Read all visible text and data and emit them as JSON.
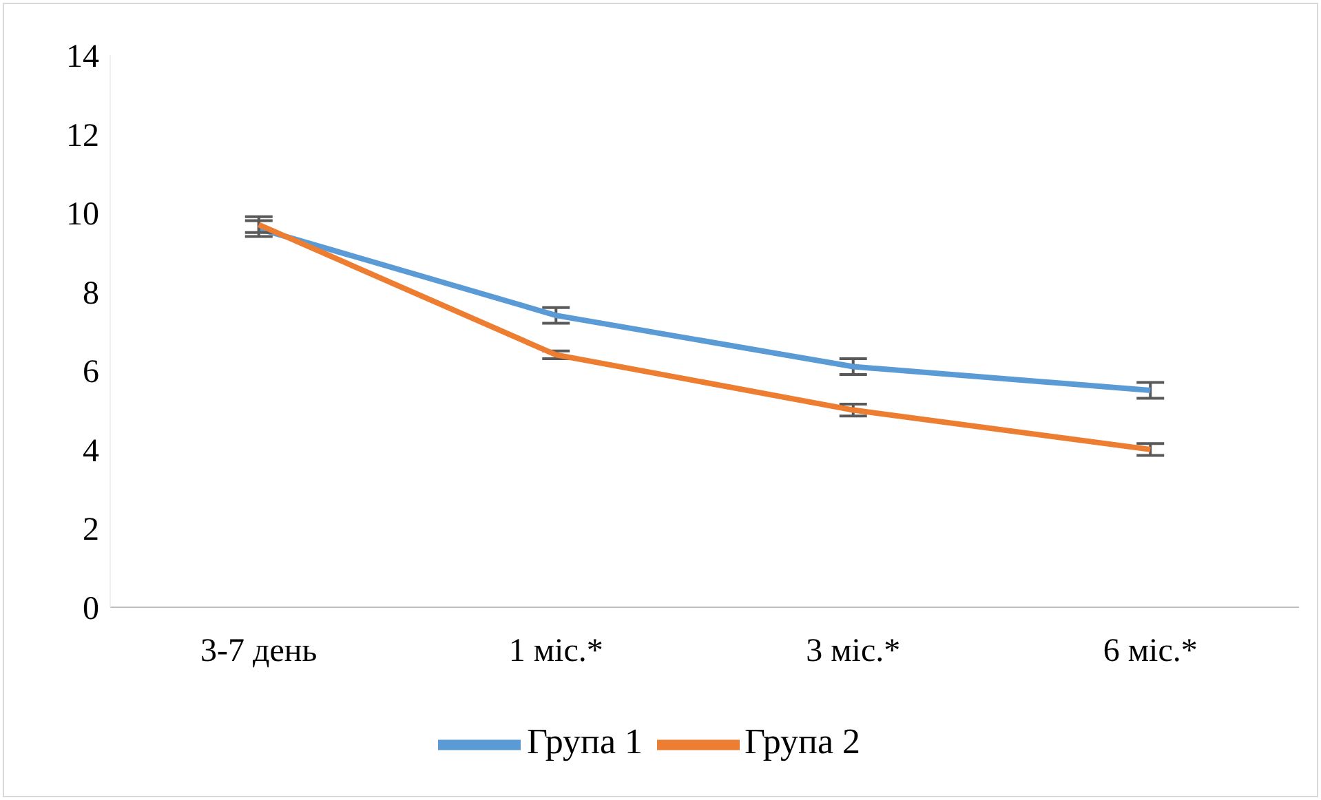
{
  "chart_data": {
    "type": "line",
    "categories": [
      "3-7 день",
      "1 міс.*",
      "3 міс.*",
      "6 міс.*"
    ],
    "series": [
      {
        "name": "Група 1",
        "color": "#5b9bd5",
        "values": [
          9.6,
          7.4,
          6.1,
          5.5
        ],
        "errors": [
          0.2,
          0.2,
          0.2,
          0.2
        ]
      },
      {
        "name": "Група 2",
        "color": "#ed7d31",
        "values": [
          9.7,
          6.4,
          5.0,
          4.0
        ],
        "errors": [
          0.2,
          0.1,
          0.15,
          0.15
        ]
      }
    ],
    "ylim": [
      0,
      14
    ],
    "yticks": [
      0,
      2,
      4,
      6,
      8,
      10,
      12,
      14
    ],
    "grid": false,
    "legend": "bottom",
    "marker": "none",
    "line_style": "solid"
  }
}
